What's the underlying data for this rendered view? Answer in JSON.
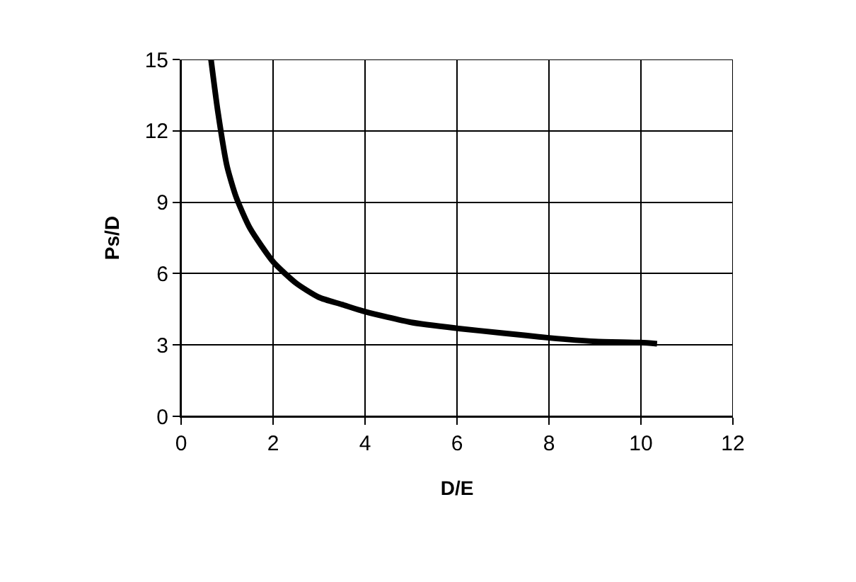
{
  "chart_data": {
    "type": "line",
    "xlabel": "D/E",
    "ylabel": "Ps/D",
    "series": [
      {
        "color": "#000000",
        "x": [
          0.65,
          0.8,
          1.0,
          1.2,
          1.5,
          2.0,
          2.5,
          3.0,
          3.5,
          4.0,
          5.0,
          6.0,
          7.0,
          8.0,
          9.0,
          10.0,
          10.35
        ],
        "values": [
          15,
          12.8,
          10.5,
          9.2,
          7.9,
          6.5,
          5.6,
          5.0,
          4.7,
          4.4,
          3.95,
          3.7,
          3.5,
          3.3,
          3.15,
          3.1,
          3.05
        ]
      }
    ],
    "xlim": [
      0,
      12
    ],
    "xticks": [
      0,
      2,
      4,
      6,
      8,
      10,
      12
    ],
    "ylim": [
      0,
      15
    ],
    "yticks": [
      0,
      3,
      6,
      9,
      12,
      15
    ],
    "grid": true,
    "marker": "none",
    "line_style": "solid"
  }
}
